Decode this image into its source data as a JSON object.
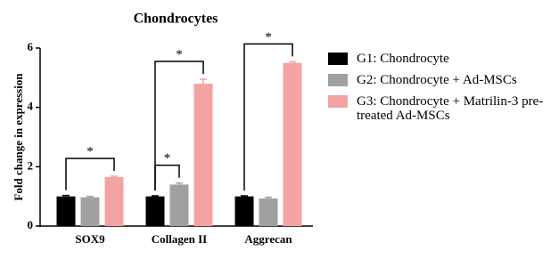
{
  "chart_data": {
    "type": "bar",
    "title": "Chondrocytes",
    "y_label": "Fold change in expression",
    "categories": [
      "SOX9",
      "Collagen II",
      "Aggrecan"
    ],
    "series": [
      {
        "name": "G1: Chondrocyte",
        "color": "#000000",
        "values": [
          1,
          1,
          1
        ],
        "errors": [
          0.03,
          0.02,
          0.02
        ]
      },
      {
        "name": "G2: Chondrocyte + Ad-MSCs",
        "color": "#a0a0a0",
        "values": [
          0.97,
          1.4,
          0.93
        ],
        "errors": [
          0.03,
          0.05,
          0.04
        ]
      },
      {
        "name": "G3: Chondrocyte + Matrilin-3 pre-treated Ad-MSCs",
        "color": "#f4a3a3",
        "values": [
          1.65,
          4.8,
          5.5
        ],
        "errors": [
          0.03,
          0.15,
          0.04
        ]
      }
    ],
    "annotations": [
      {
        "text": "*",
        "category": 0,
        "from_series": 0,
        "to_series": 2
      },
      {
        "text": "*",
        "category": 1,
        "from_series": 0,
        "to_series": 1
      },
      {
        "text": "*",
        "category": 1,
        "from_series": 0,
        "to_series": 2
      },
      {
        "text": "*",
        "category": 2,
        "from_series": 0,
        "to_series": 2
      }
    ],
    "ylim": [
      0,
      6
    ],
    "yticks": [
      0,
      2,
      4,
      6
    ],
    "legend": "right"
  }
}
